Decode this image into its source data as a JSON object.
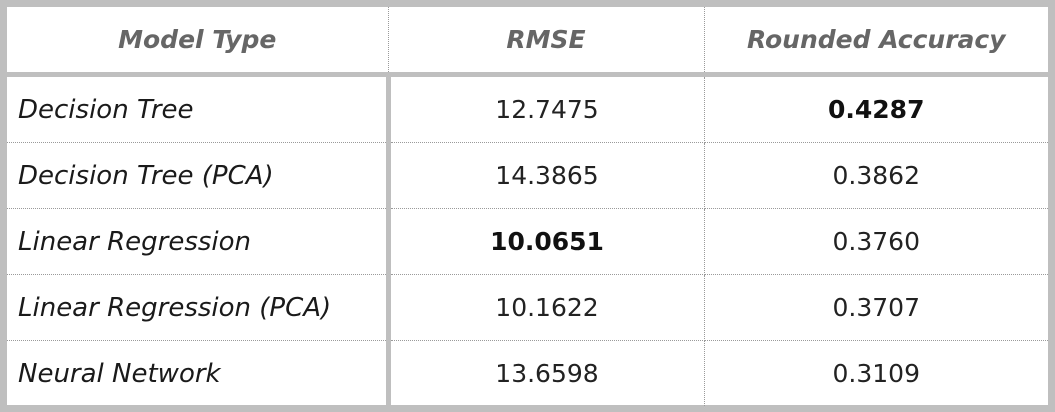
{
  "table": {
    "headers": {
      "model": "Model Type",
      "rmse": "RMSE",
      "accuracy": "Rounded Accuracy"
    },
    "rows": [
      {
        "model": "Decision Tree",
        "rmse": "12.7475",
        "accuracy": "0.4287",
        "rmse_bold": false,
        "accuracy_bold": true
      },
      {
        "model": "Decision Tree (PCA)",
        "rmse": "14.3865",
        "accuracy": "0.3862",
        "rmse_bold": false,
        "accuracy_bold": false
      },
      {
        "model": "Linear Regression",
        "rmse": "10.0651",
        "accuracy": "0.3760",
        "rmse_bold": true,
        "accuracy_bold": false
      },
      {
        "model": "Linear Regression (PCA)",
        "rmse": "10.1622",
        "accuracy": "0.3707",
        "rmse_bold": false,
        "accuracy_bold": false
      },
      {
        "model": "Neural Network",
        "rmse": "13.6598",
        "accuracy": "0.3109",
        "rmse_bold": false,
        "accuracy_bold": false
      }
    ]
  },
  "colors": {
    "frame_border": "#bfbfbf",
    "header_text": "#666666",
    "cell_text": "#222222",
    "dotted_divider": "#9a9a9a"
  }
}
